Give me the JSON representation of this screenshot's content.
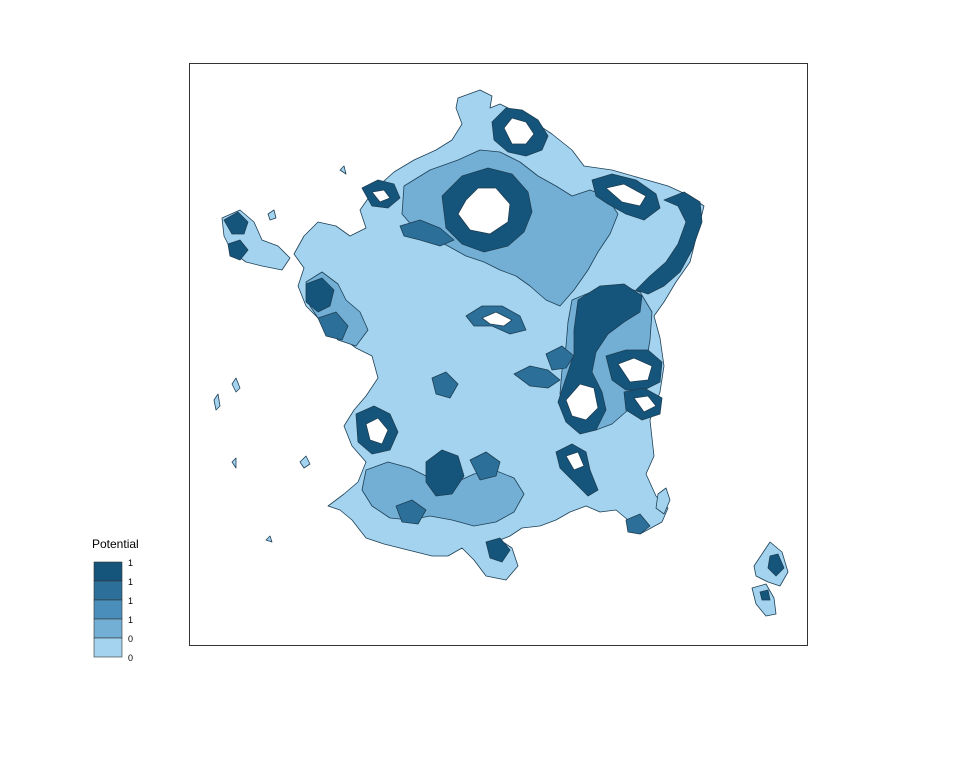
{
  "legend": {
    "title": "Potential",
    "classes": [
      {
        "label": "1",
        "color": "#15557b"
      },
      {
        "label": "1",
        "color": "#2c6f98"
      },
      {
        "label": "1",
        "color": "#4a8fbb"
      },
      {
        "label": "1",
        "color": "#73afd5"
      },
      {
        "label": "0",
        "color": "#a3d3ee"
      }
    ],
    "bottom_label": "0"
  },
  "colors": {
    "frame": "#333333",
    "outline": "#1d3f55",
    "background": "#ffffff"
  }
}
